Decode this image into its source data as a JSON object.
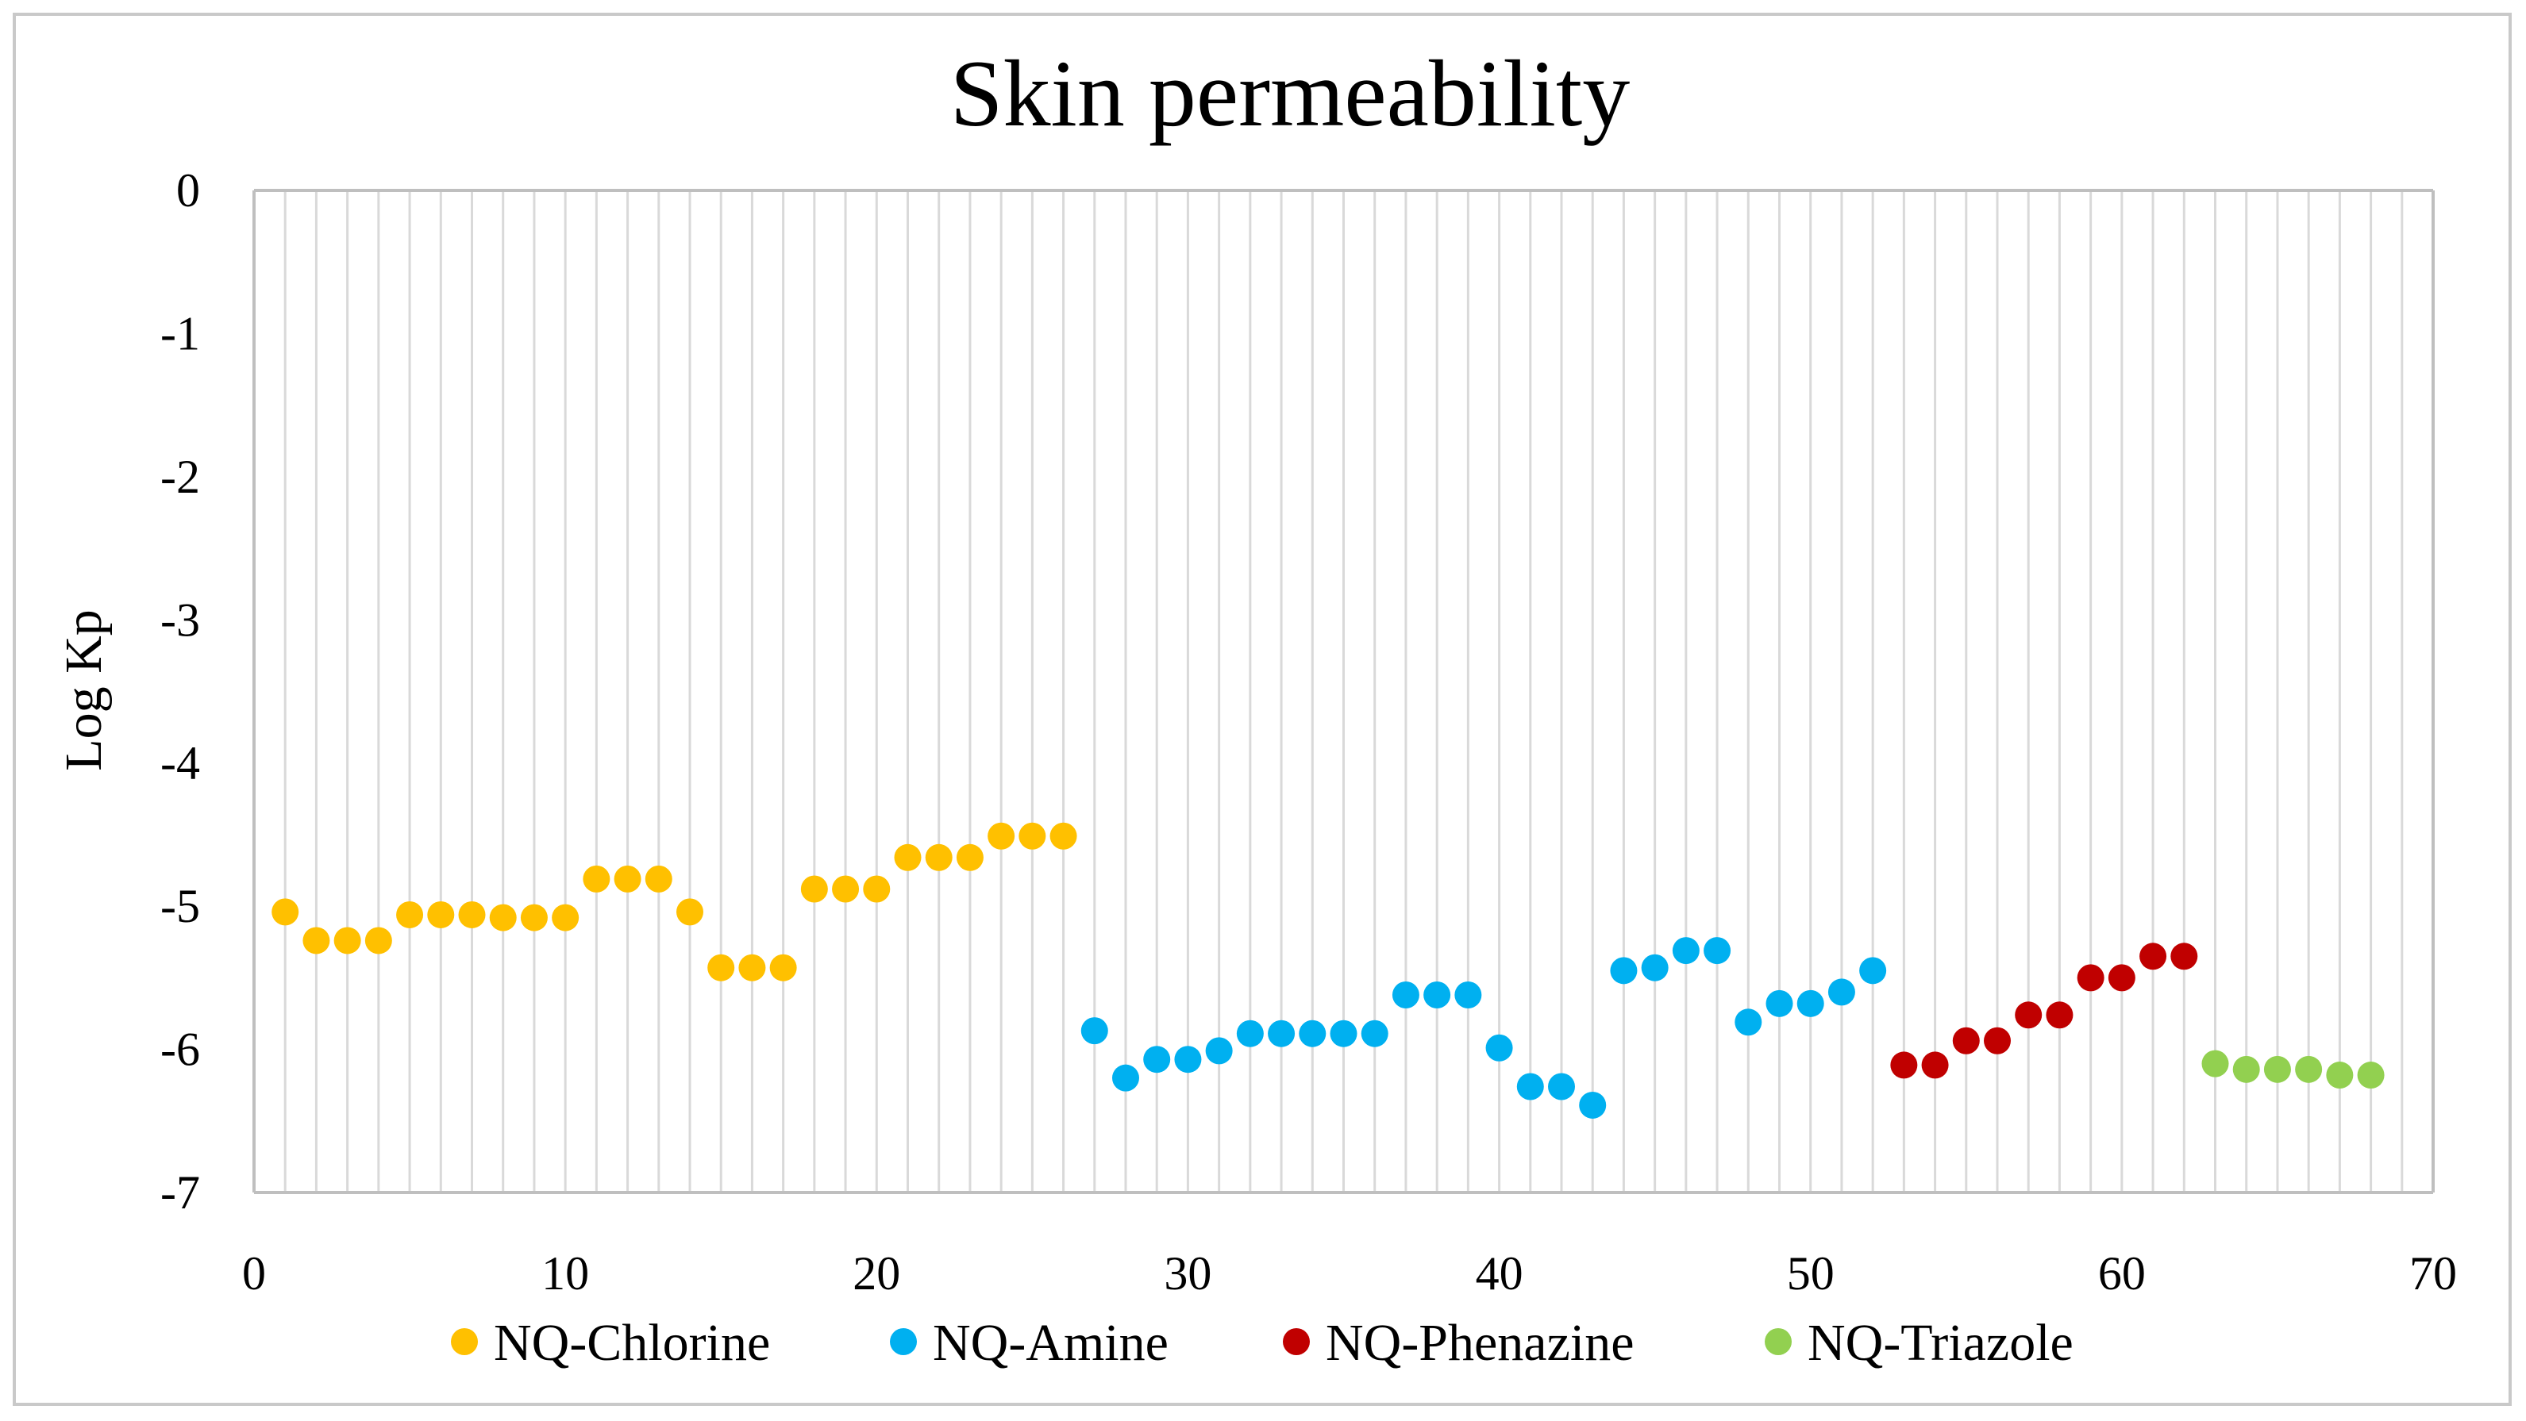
{
  "chart_data": {
    "type": "scatter",
    "title": "Skin permeability",
    "xlabel": "",
    "ylabel": "Log Kp",
    "xlim": [
      0,
      70
    ],
    "ylim": [
      -7,
      0
    ],
    "x_ticks": [
      0,
      10,
      20,
      30,
      40,
      50,
      60,
      70
    ],
    "y_ticks": [
      0,
      -1,
      -2,
      -3,
      -4,
      -5,
      -6,
      -7
    ],
    "x_tick_labels": [
      "0",
      "10",
      "20",
      "30",
      "40",
      "50",
      "60",
      "70"
    ],
    "y_tick_labels": [
      "0",
      "-1",
      "-2",
      "-3",
      "-4",
      "-5",
      "-6",
      "-7"
    ],
    "grid": "vertical",
    "legend_position": "bottom",
    "series": [
      {
        "name": "NQ-Chlorine",
        "color": "#FFC000",
        "x": [
          1,
          2,
          3,
          4,
          5,
          6,
          7,
          8,
          9,
          10,
          11,
          12,
          13,
          14,
          15,
          16,
          17,
          18,
          19,
          20,
          21,
          22,
          23,
          24,
          25,
          26
        ],
        "y": [
          -5.04,
          -5.24,
          -5.24,
          -5.24,
          -5.06,
          -5.06,
          -5.06,
          -5.08,
          -5.08,
          -5.08,
          -4.81,
          -4.81,
          -4.81,
          -5.04,
          -5.43,
          -5.43,
          -5.43,
          -4.88,
          -4.88,
          -4.88,
          -4.66,
          -4.66,
          -4.66,
          -4.51,
          -4.51,
          -4.51
        ]
      },
      {
        "name": "NQ-Amine",
        "color": "#00B0F0",
        "x": [
          27,
          28,
          29,
          30,
          31,
          32,
          33,
          34,
          35,
          36,
          37,
          38,
          39,
          40,
          41,
          42,
          43,
          44,
          45,
          46,
          47,
          48,
          49,
          50,
          51,
          52
        ],
        "y": [
          -5.87,
          -6.2,
          -6.07,
          -6.07,
          -6.01,
          -5.89,
          -5.89,
          -5.89,
          -5.89,
          -5.89,
          -5.62,
          -5.62,
          -5.62,
          -5.99,
          -6.26,
          -6.26,
          -6.39,
          -5.45,
          -5.43,
          -5.31,
          -5.31,
          -5.81,
          -5.68,
          -5.68,
          -5.6,
          -5.45
        ]
      },
      {
        "name": "NQ-Phenazine",
        "color": "#C00000",
        "x": [
          53,
          54,
          55,
          56,
          57,
          58,
          59,
          60,
          61,
          62
        ],
        "y": [
          -6.11,
          -6.11,
          -5.94,
          -5.94,
          -5.76,
          -5.76,
          -5.5,
          -5.5,
          -5.35,
          -5.35
        ]
      },
      {
        "name": "NQ-Triazole",
        "color": "#92D050",
        "x": [
          63,
          64,
          65,
          66,
          67,
          68
        ],
        "y": [
          -6.1,
          -6.14,
          -6.14,
          -6.14,
          -6.18,
          -6.18
        ]
      }
    ]
  }
}
